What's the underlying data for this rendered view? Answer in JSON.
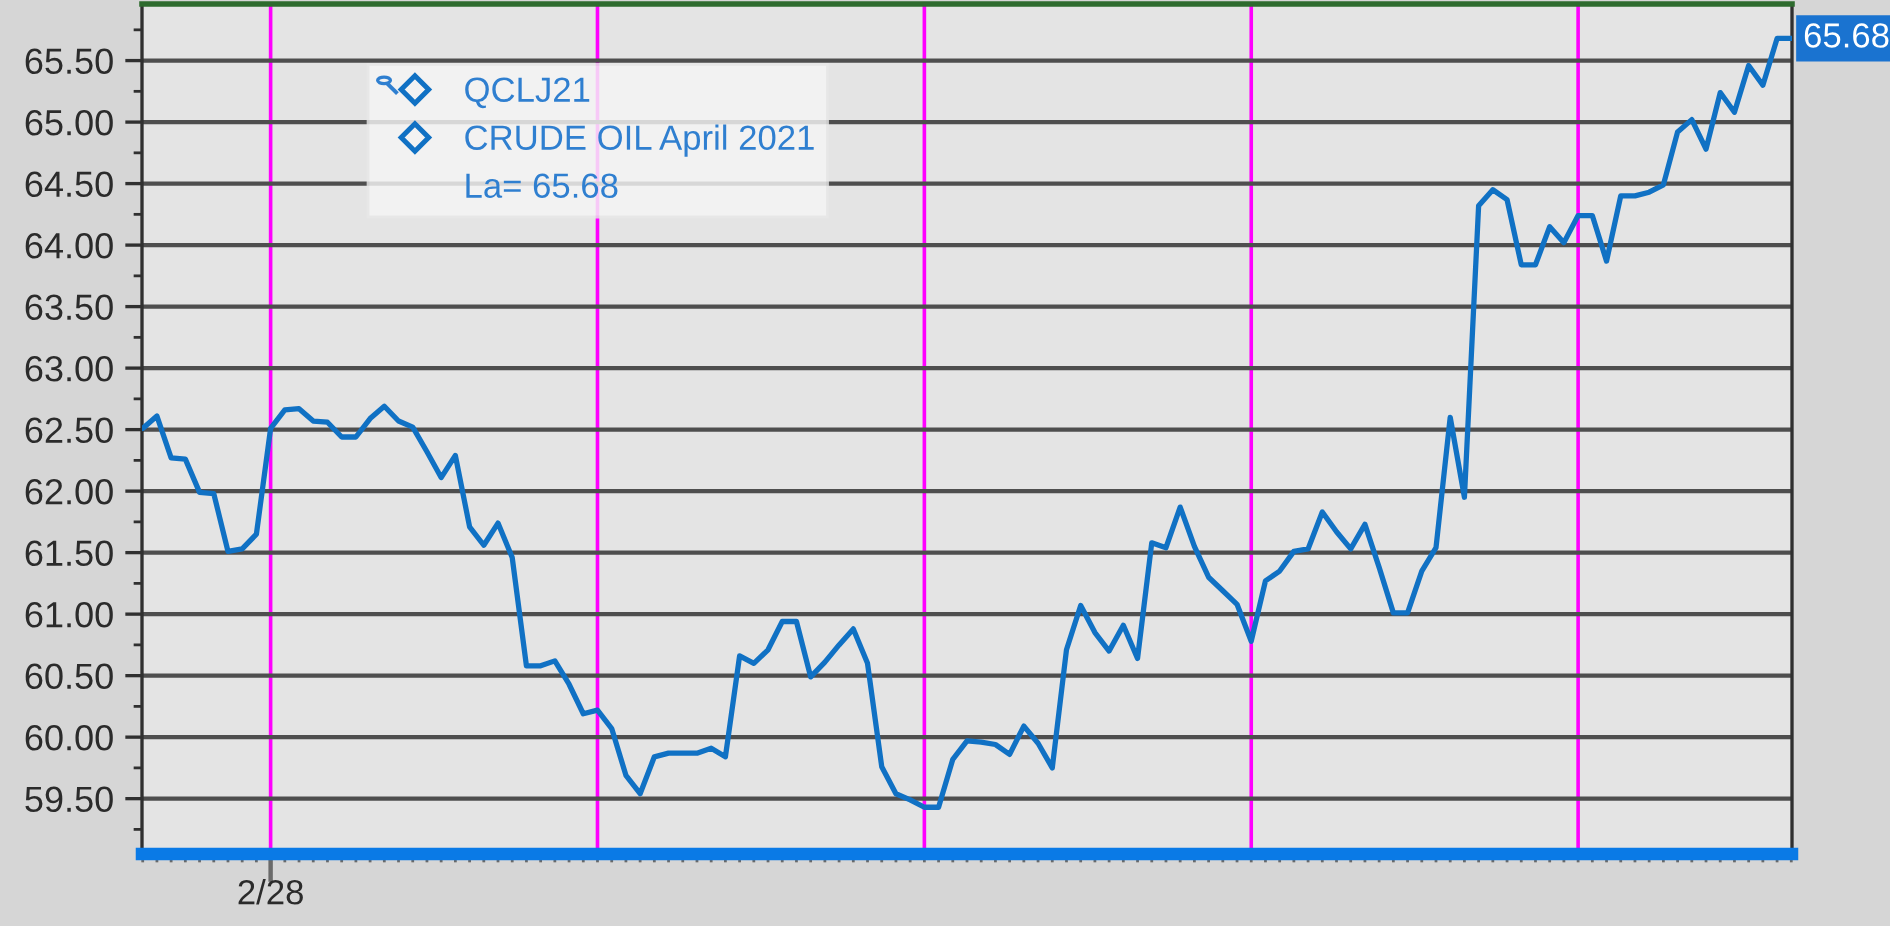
{
  "chart_data": {
    "type": "line",
    "title": "QCLJ21",
    "categories": [
      null,
      null,
      null,
      null,
      null,
      null,
      null,
      null,
      null,
      "2/28",
      null,
      null,
      null,
      null,
      null,
      null,
      null,
      null,
      null,
      null,
      null,
      null,
      null,
      null,
      null,
      null,
      null,
      null,
      null,
      null,
      null,
      null,
      null,
      null,
      null,
      null,
      null,
      null,
      null,
      null,
      null,
      null,
      null,
      null,
      null,
      null,
      null,
      null,
      null,
      null,
      null,
      null,
      null,
      null,
      null,
      null,
      null,
      null,
      null,
      null,
      null,
      null,
      null,
      null,
      null,
      null,
      null,
      null,
      null,
      null,
      null,
      null,
      null,
      null,
      null,
      null,
      null,
      null,
      null,
      null,
      null,
      null,
      null,
      null,
      null,
      null,
      null,
      null,
      null,
      null,
      null,
      null,
      null,
      null,
      null,
      null,
      null,
      null,
      null,
      null,
      null,
      null,
      null,
      null,
      null,
      null,
      null,
      null,
      null,
      null,
      null,
      null,
      null,
      null,
      null,
      null,
      null
    ],
    "series": [
      {
        "name": "CRUDE OIL April 2021",
        "color": "#1071c4",
        "values": [
          62.51,
          62.61,
          62.27,
          62.26,
          61.99,
          61.98,
          61.51,
          61.53,
          61.65,
          62.51,
          62.66,
          62.67,
          62.57,
          62.56,
          62.44,
          62.44,
          62.59,
          62.69,
          62.57,
          62.52,
          62.32,
          62.11,
          62.29,
          61.71,
          61.56,
          61.74,
          61.46,
          60.58,
          60.58,
          60.62,
          60.43,
          60.19,
          60.22,
          60.07,
          59.69,
          59.54,
          59.84,
          59.87,
          59.87,
          59.87,
          59.91,
          59.84,
          60.66,
          60.6,
          60.71,
          60.94,
          60.94,
          60.49,
          60.61,
          60.75,
          60.88,
          60.6,
          59.76,
          59.54,
          59.49,
          59.43,
          59.43,
          59.82,
          59.97,
          59.96,
          59.94,
          59.86,
          60.09,
          59.95,
          59.75,
          60.71,
          61.07,
          60.85,
          60.7,
          60.91,
          60.64,
          61.58,
          61.54,
          61.87,
          61.55,
          61.3,
          61.19,
          61.08,
          60.78,
          61.27,
          61.35,
          61.51,
          61.53,
          61.83,
          61.67,
          61.53,
          61.73,
          61.38,
          61.01,
          61.01,
          61.35,
          61.54,
          62.6,
          61.95,
          64.32,
          64.45,
          64.37,
          63.84,
          63.84,
          64.15,
          64.02,
          64.24,
          64.24,
          63.87,
          64.4,
          64.4,
          64.43,
          64.49,
          64.92,
          65.02,
          64.78,
          65.24,
          65.08,
          65.46,
          65.3,
          65.68,
          65.68
        ]
      }
    ],
    "ylim": [
      59.05,
      65.96
    ],
    "yticks": [
      {
        "value": 59.25,
        "label": null
      },
      {
        "value": 59.5,
        "label": "59.50"
      },
      {
        "value": 59.75,
        "label": null
      },
      {
        "value": 60.0,
        "label": "60.00"
      },
      {
        "value": 60.25,
        "label": null
      },
      {
        "value": 60.5,
        "label": "60.50"
      },
      {
        "value": 60.75,
        "label": null
      },
      {
        "value": 61.0,
        "label": "61.00"
      },
      {
        "value": 61.25,
        "label": null
      },
      {
        "value": 61.5,
        "label": "61.50"
      },
      {
        "value": 61.75,
        "label": null
      },
      {
        "value": 62.0,
        "label": "62.00"
      },
      {
        "value": 62.25,
        "label": null
      },
      {
        "value": 62.5,
        "label": "62.50"
      },
      {
        "value": 62.75,
        "label": null
      },
      {
        "value": 63.0,
        "label": "63.00"
      },
      {
        "value": 63.25,
        "label": null
      },
      {
        "value": 63.5,
        "label": "63.50"
      },
      {
        "value": 63.75,
        "label": null
      },
      {
        "value": 64.0,
        "label": "64.00"
      },
      {
        "value": 64.25,
        "label": null
      },
      {
        "value": 64.5,
        "label": "64.50"
      },
      {
        "value": 64.75,
        "label": null
      },
      {
        "value": 65.0,
        "label": "65.00"
      },
      {
        "value": 65.25,
        "label": null
      },
      {
        "value": 65.5,
        "label": "65.50"
      },
      {
        "value": 65.75,
        "label": null
      }
    ],
    "grid": true,
    "legend": "top left",
    "line_style": "solid",
    "annotations": [
      "La= 65.68",
      "65.68"
    ]
  }
}
